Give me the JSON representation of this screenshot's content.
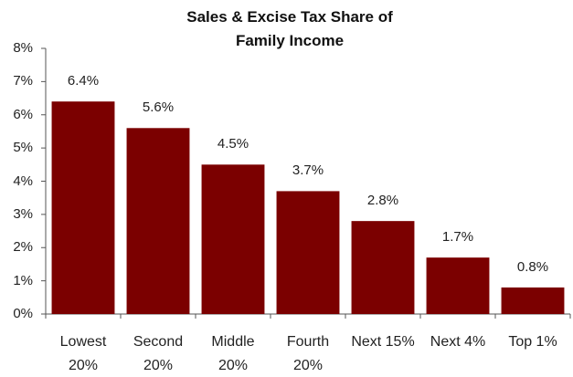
{
  "chart_data": {
    "type": "bar",
    "title": "Sales & Excise Tax Share of Family Income",
    "categories": [
      "Lowest 20%",
      "Second 20%",
      "Middle 20%",
      "Fourth 20%",
      "Next 15%",
      "Next 4%",
      "Top 1%"
    ],
    "values": [
      6.4,
      5.6,
      4.5,
      3.7,
      2.8,
      1.7,
      0.8
    ],
    "value_labels": [
      "6.4%",
      "5.6%",
      "4.5%",
      "3.7%",
      "2.8%",
      "1.7%",
      "0.8%"
    ],
    "color": "#7b0000",
    "ylim": [
      0,
      8
    ],
    "yticks": [
      {
        "value": 0,
        "label": "0%"
      },
      {
        "value": 1,
        "label": "1%"
      },
      {
        "value": 2,
        "label": "2%"
      },
      {
        "value": 3,
        "label": "3%"
      },
      {
        "value": 4,
        "label": "4%"
      },
      {
        "value": 5,
        "label": "5%"
      },
      {
        "value": 6,
        "label": "6%"
      },
      {
        "value": 7,
        "label": "7%"
      },
      {
        "value": 8,
        "label": "8%"
      }
    ],
    "grid": false
  }
}
